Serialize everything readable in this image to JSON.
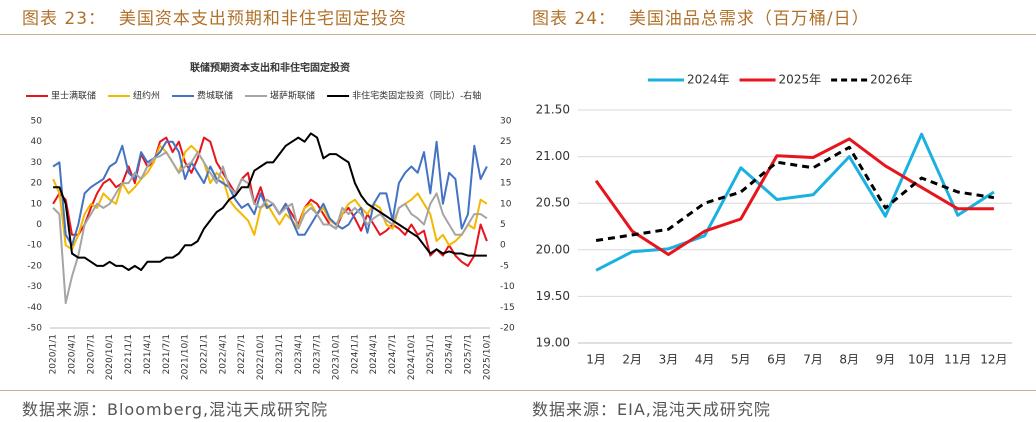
{
  "figures": [
    {
      "caption": "图表 23：  美国资本支出预期和非住宅固定投资",
      "source": "数据来源：Bloomberg,混沌天成研究院"
    },
    {
      "caption": "图表 24：  美国油品总需求（百万桶/日）",
      "source": "数据来源：EIA,混沌天成研究院"
    }
  ],
  "chart_data": [
    {
      "type": "line",
      "title": "联储预期资本支出和非住宅固定投资",
      "grid": false,
      "legend": "top",
      "categories": [
        "2020/1/1",
        null,
        null,
        "2020/4/1",
        null,
        null,
        "2020/7/1",
        null,
        null,
        "2020/10/1",
        null,
        null,
        "2021/1/1",
        null,
        null,
        "2021/4/1",
        null,
        null,
        "2021/7/1",
        null,
        null,
        "2021/10/1",
        null,
        null,
        "2022/1/1",
        null,
        null,
        "2022/4/1",
        null,
        null,
        "2022/7/1",
        null,
        null,
        "2022/10/1",
        null,
        null,
        "2023/1/1",
        null,
        null,
        "2023/4/1",
        null,
        null,
        "2023/7/1",
        null,
        null,
        "2023/10/1",
        null,
        null,
        "2024/1/1",
        null,
        null,
        "2024/4/1",
        null,
        null,
        "2024/7/1",
        null,
        null,
        "2024/10/1",
        null,
        null,
        "2025/1/1",
        null,
        null,
        "2025/4/1",
        null,
        null,
        "2025/7/1",
        null,
        null,
        "2025/10/1"
      ],
      "ylim": [
        -50,
        50
      ],
      "yticks": [
        -50,
        -40,
        -30,
        -20,
        -10,
        0,
        10,
        20,
        30,
        40,
        50
      ],
      "y2lim": [
        -20,
        30
      ],
      "y2ticks": [
        -20,
        -15,
        -10,
        -5,
        0,
        5,
        10,
        15,
        20,
        25,
        30
      ],
      "series": [
        {
          "name": "里士满联储",
          "color": "#e8141c",
          "values": [
            10,
            15,
            12,
            -5,
            -5,
            0,
            8,
            15,
            20,
            22,
            18,
            20,
            28,
            20,
            34,
            28,
            30,
            40,
            42,
            35,
            40,
            30,
            25,
            32,
            42,
            40,
            30,
            25,
            20,
            15,
            22,
            25,
            10,
            18,
            8,
            10,
            5,
            10,
            5,
            0,
            8,
            12,
            10,
            5,
            0,
            -2,
            5,
            8,
            3,
            -3,
            5,
            0,
            -5,
            -3,
            0,
            -2,
            -5,
            0,
            -5,
            -3,
            -15,
            -12,
            -15,
            -10,
            -15,
            -18,
            -20,
            -15,
            0,
            -8
          ]
        },
        {
          "name": "纽约州",
          "color": "#f5b800",
          "values": [
            22,
            15,
            -10,
            -12,
            -5,
            5,
            10,
            8,
            15,
            12,
            10,
            20,
            15,
            18,
            22,
            25,
            30,
            38,
            35,
            30,
            25,
            35,
            38,
            35,
            30,
            20,
            25,
            22,
            12,
            8,
            5,
            2,
            -5,
            8,
            10,
            5,
            0,
            5,
            2,
            -2,
            8,
            10,
            5,
            8,
            2,
            0,
            5,
            10,
            12,
            8,
            5,
            10,
            8,
            0,
            -2,
            8,
            10,
            12,
            15,
            10,
            5,
            -8,
            -5,
            -10,
            -8,
            -5,
            0,
            -2,
            12,
            10
          ]
        },
        {
          "name": "费城联储",
          "color": "#4472c4",
          "values": [
            28,
            30,
            -5,
            -10,
            0,
            15,
            18,
            20,
            22,
            28,
            30,
            38,
            25,
            22,
            35,
            30,
            32,
            35,
            40,
            40,
            35,
            22,
            30,
            25,
            20,
            28,
            22,
            20,
            18,
            12,
            8,
            10,
            5,
            15,
            8,
            10,
            5,
            10,
            2,
            -5,
            -5,
            0,
            5,
            10,
            3,
            0,
            -2,
            0,
            5,
            8,
            -4,
            10,
            15,
            15,
            2,
            20,
            25,
            28,
            25,
            35,
            15,
            40,
            10,
            25,
            22,
            -2,
            5,
            38,
            22,
            28
          ]
        },
        {
          "name": "堪萨斯联储",
          "color": "#a5a5a5",
          "values": [
            8,
            5,
            -38,
            -25,
            -15,
            0,
            5,
            10,
            8,
            10,
            15,
            20,
            20,
            25,
            22,
            28,
            32,
            33,
            35,
            30,
            25,
            28,
            30,
            35,
            30,
            25,
            20,
            28,
            18,
            15,
            22,
            20,
            10,
            8,
            12,
            10,
            5,
            8,
            10,
            -2,
            5,
            8,
            5,
            0,
            0,
            -2,
            8,
            5,
            8,
            5,
            0,
            3,
            5,
            2,
            0,
            8,
            10,
            5,
            3,
            0,
            10,
            15,
            5,
            0,
            -5,
            -5,
            0,
            5,
            5,
            3
          ]
        },
        {
          "name": "非住宅类固定投资（同比）-右轴",
          "color": "#000000",
          "axis": "y2",
          "values": [
            14,
            14,
            10,
            -2,
            -3,
            -3,
            -4,
            -5,
            -5,
            -4,
            -5,
            -5,
            -6,
            -5,
            -6,
            -4,
            -4,
            -4,
            -3,
            -3,
            -2,
            0,
            0,
            1,
            4,
            6,
            8,
            9,
            11,
            12,
            14,
            14,
            18,
            19,
            20,
            20,
            22,
            24,
            25,
            26,
            25,
            27,
            26,
            21,
            22,
            22,
            21,
            20,
            15,
            12,
            10,
            9,
            8,
            7,
            6,
            5,
            4,
            3,
            2,
            0,
            -2,
            -1,
            -2,
            -1.5,
            -2,
            -2,
            -2.5,
            -2.5,
            -2.5,
            -2.5
          ]
        }
      ]
    },
    {
      "type": "line",
      "grid": true,
      "legend": "top",
      "categories": [
        "1月",
        "2月",
        "3月",
        "4月",
        "5月",
        "6月",
        "7月",
        "8月",
        "9月",
        "10月",
        "11月",
        "12月"
      ],
      "ylim": [
        19,
        21.5
      ],
      "yticks": [
        {
          "value": 19,
          "label": "19.00"
        },
        {
          "value": 19.5,
          "label": "19.50"
        },
        {
          "value": 20,
          "label": "20.00"
        },
        {
          "value": 20.5,
          "label": "20.50"
        },
        {
          "value": 21,
          "label": "21.00"
        },
        {
          "value": 21.5,
          "label": "21.50"
        }
      ],
      "series": [
        {
          "name": "2024年",
          "color": "#1ab0e0",
          "values": [
            19.78,
            19.98,
            20.01,
            20.15,
            20.88,
            20.54,
            20.59,
            21.0,
            20.36,
            21.24,
            20.37,
            20.62
          ]
        },
        {
          "name": "2025年",
          "color": "#e8141c",
          "values": [
            20.74,
            20.2,
            19.95,
            20.2,
            20.33,
            21.01,
            20.99,
            21.19,
            20.9,
            20.67,
            20.44,
            20.44
          ]
        },
        {
          "name": "2026年",
          "color": "#000000",
          "dashed": true,
          "values": [
            20.1,
            20.16,
            20.22,
            20.5,
            20.62,
            20.94,
            20.88,
            21.1,
            20.45,
            20.77,
            20.62,
            20.56
          ]
        }
      ]
    }
  ]
}
